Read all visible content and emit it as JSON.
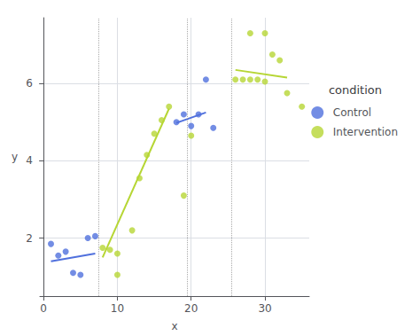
{
  "chart_data": {
    "type": "scatter",
    "xlabel": "x",
    "ylabel": "y",
    "legend_title": "condition",
    "xlim": [
      -0.5,
      36
    ],
    "ylim": [
      0.5,
      7.7
    ],
    "xticks": [
      0,
      10,
      20,
      30
    ],
    "yticks": [
      2,
      4,
      6
    ],
    "grid": true,
    "legend": "right",
    "vlines": [
      7.5,
      19.5,
      25.5
    ],
    "series": [
      {
        "name": "Control",
        "x": [
          1,
          2,
          3,
          4,
          5,
          6,
          7,
          18,
          19,
          20,
          21,
          22,
          23
        ],
        "values": [
          1.85,
          1.55,
          1.65,
          1.1,
          1.05,
          2.0,
          2.05,
          5.0,
          5.2,
          4.9,
          5.2,
          6.1,
          4.85
        ],
        "lines": [
          {
            "x": [
              1,
              7
            ],
            "y": [
              1.4,
              1.6
            ]
          },
          {
            "x": [
              18,
              22
            ],
            "y": [
              4.98,
              5.25
            ]
          }
        ]
      },
      {
        "name": "Intervention",
        "x": [
          8,
          9,
          10,
          10,
          12,
          13,
          14,
          15,
          16,
          17,
          19,
          20,
          26,
          27,
          28,
          29,
          30,
          28,
          30,
          31,
          32,
          33,
          35
        ],
        "values": [
          1.75,
          1.7,
          1.6,
          1.05,
          2.2,
          3.55,
          4.15,
          4.7,
          5.05,
          5.4,
          3.1,
          4.65,
          6.1,
          6.1,
          6.1,
          6.1,
          6.05,
          7.3,
          7.3,
          6.75,
          6.6,
          5.75,
          5.4
        ],
        "lines": [
          {
            "x": [
              8,
              17
            ],
            "y": [
              1.5,
              5.35
            ]
          },
          {
            "x": [
              26,
              33
            ],
            "y": [
              6.35,
              6.15
            ]
          }
        ]
      }
    ]
  }
}
